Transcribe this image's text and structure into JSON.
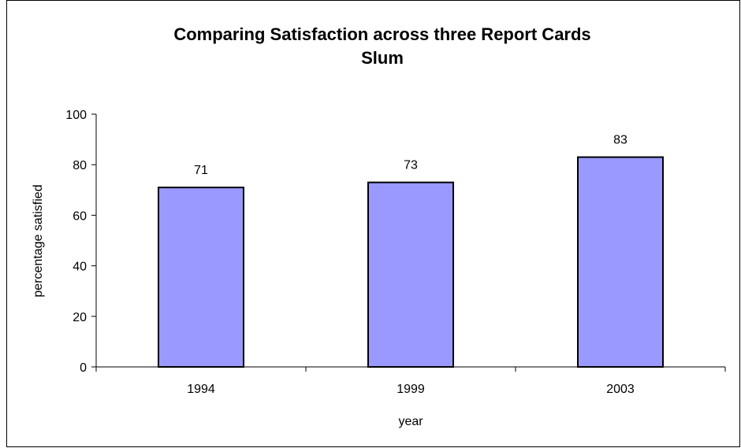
{
  "chart_data": {
    "type": "bar",
    "title": "Comparing Satisfaction across three Report Cards",
    "subtitle": "Slum",
    "xlabel": "year",
    "ylabel": "percentage satisfied",
    "categories": [
      "1994",
      "1999",
      "2003"
    ],
    "values": [
      71,
      73,
      83
    ],
    "data_labels": [
      "71",
      "73",
      "83"
    ],
    "ylim": [
      0,
      100
    ],
    "yticks": [
      0,
      20,
      40,
      60,
      80,
      100
    ],
    "ytick_labels": [
      "0",
      "20",
      "40",
      "60",
      "80",
      "100"
    ],
    "grid": false,
    "legend": "none",
    "colors": {
      "bar_fill": "#9999ff",
      "bar_stroke": "#000000",
      "axis": "#000000"
    }
  }
}
